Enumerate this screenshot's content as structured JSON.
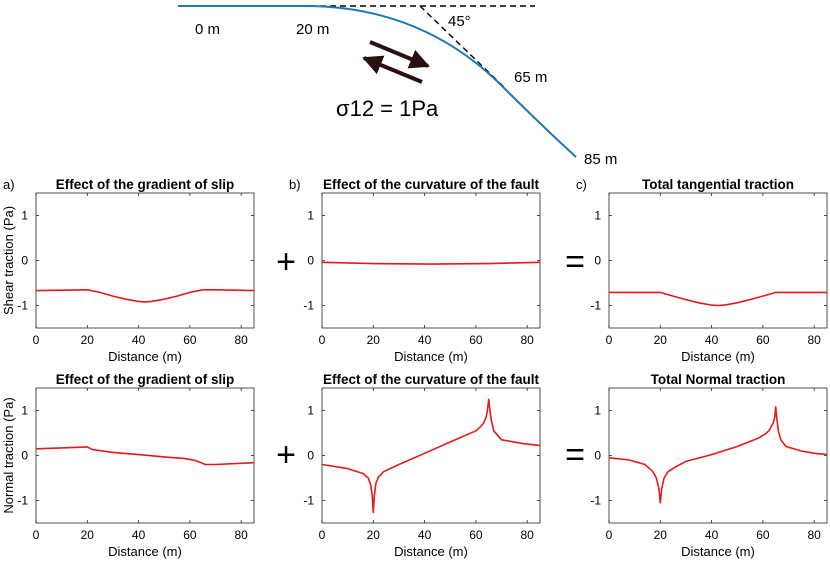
{
  "schematic": {
    "labels": [
      "0 m",
      "20 m",
      "65 m",
      "85 m"
    ],
    "angle_label": "45°",
    "stress_label": "σ12 = 1Pa"
  },
  "operators": {
    "plus": "+",
    "equals": "="
  },
  "chart_data": [
    {
      "type": "line",
      "panel": "a)",
      "title": "Effect of the gradient of slip",
      "xlabel": "Distance (m)",
      "ylabel": "Shear traction (Pa)",
      "xlim": [
        0,
        85
      ],
      "ylim": [
        -1.5,
        1.5
      ],
      "xticks": [
        0,
        20,
        40,
        60,
        80
      ],
      "yticks": [
        -1,
        0,
        1
      ],
      "series": [
        {
          "name": "traction",
          "color": "#e41a1c",
          "x": [
            0,
            20,
            25,
            30,
            35,
            40,
            42.5,
            45,
            50,
            55,
            60,
            65,
            70,
            85
          ],
          "y": [
            -0.67,
            -0.65,
            -0.71,
            -0.79,
            -0.86,
            -0.91,
            -0.92,
            -0.91,
            -0.86,
            -0.79,
            -0.71,
            -0.65,
            -0.65,
            -0.67
          ]
        }
      ]
    },
    {
      "type": "line",
      "panel": "b)",
      "title": "Effect of the curvature of the fault",
      "xlabel": "Distance (m)",
      "ylabel": "",
      "xlim": [
        0,
        85
      ],
      "ylim": [
        -1.5,
        1.5
      ],
      "xticks": [
        0,
        20,
        40,
        60,
        80
      ],
      "yticks": [
        -1,
        0,
        1
      ],
      "series": [
        {
          "name": "traction",
          "color": "#e41a1c",
          "x": [
            0,
            20,
            42.5,
            65,
            85
          ],
          "y": [
            -0.04,
            -0.07,
            -0.08,
            -0.07,
            -0.04
          ]
        }
      ]
    },
    {
      "type": "line",
      "panel": "c)",
      "title": "Total tangential traction",
      "xlabel": "Distance (m)",
      "ylabel": "",
      "xlim": [
        0,
        85
      ],
      "ylim": [
        -1.5,
        1.5
      ],
      "xticks": [
        0,
        20,
        40,
        60,
        80
      ],
      "yticks": [
        -1,
        0,
        1
      ],
      "series": [
        {
          "name": "traction",
          "color": "#e41a1c",
          "x": [
            0,
            20,
            25,
            30,
            35,
            40,
            42.5,
            45,
            50,
            55,
            60,
            65,
            85
          ],
          "y": [
            -0.71,
            -0.71,
            -0.79,
            -0.87,
            -0.94,
            -0.99,
            -1.0,
            -0.99,
            -0.94,
            -0.87,
            -0.79,
            -0.71,
            -0.71
          ]
        }
      ]
    },
    {
      "type": "line",
      "panel": "",
      "title": "Effect of the gradient of slip",
      "xlabel": "Distance (m)",
      "ylabel": "Normal traction (Pa)",
      "xlim": [
        0,
        85
      ],
      "ylim": [
        -1.5,
        1.5
      ],
      "xticks": [
        0,
        20,
        40,
        60,
        80
      ],
      "yticks": [
        -1,
        0,
        1
      ],
      "series": [
        {
          "name": "traction",
          "color": "#e41a1c",
          "x": [
            0,
            10,
            20,
            22,
            30,
            40,
            50,
            58,
            62,
            64,
            66,
            70,
            85
          ],
          "y": [
            0.15,
            0.17,
            0.19,
            0.13,
            0.07,
            0.02,
            -0.03,
            -0.07,
            -0.11,
            -0.15,
            -0.2,
            -0.2,
            -0.16
          ]
        }
      ]
    },
    {
      "type": "line",
      "panel": "",
      "title": "Effect of the curvature of the fault",
      "xlabel": "Distance (m)",
      "ylabel": "",
      "xlim": [
        0,
        85
      ],
      "ylim": [
        -1.5,
        1.5
      ],
      "xticks": [
        0,
        20,
        40,
        60,
        80
      ],
      "yticks": [
        -1,
        0,
        1
      ],
      "series": [
        {
          "name": "traction",
          "color": "#e41a1c",
          "x": [
            0,
            10,
            16,
            18,
            19,
            19.6,
            20,
            20.4,
            21,
            22,
            24,
            30,
            40,
            50,
            60,
            62,
            63,
            64,
            64.5,
            65,
            65.5,
            66,
            67,
            70,
            78,
            85
          ],
          "y": [
            -0.2,
            -0.29,
            -0.4,
            -0.5,
            -0.65,
            -0.9,
            -1.27,
            -0.9,
            -0.62,
            -0.48,
            -0.36,
            -0.2,
            0.05,
            0.3,
            0.55,
            0.65,
            0.72,
            0.85,
            1.0,
            1.25,
            1.0,
            0.78,
            0.55,
            0.35,
            0.27,
            0.22
          ]
        }
      ]
    },
    {
      "type": "line",
      "panel": "",
      "title": "Total Normal traction",
      "xlabel": "Distance (m)",
      "ylabel": "",
      "xlim": [
        0,
        85
      ],
      "ylim": [
        -1.5,
        1.5
      ],
      "xticks": [
        0,
        20,
        40,
        60,
        80
      ],
      "yticks": [
        -1,
        0,
        1
      ],
      "series": [
        {
          "name": "traction",
          "color": "#e41a1c",
          "x": [
            0,
            8,
            14,
            17,
            18.5,
            19.5,
            20,
            20.5,
            21.5,
            23,
            26,
            30,
            40,
            50,
            58,
            61,
            62.5,
            64,
            64.6,
            65,
            65.4,
            66,
            67,
            69,
            75,
            80,
            85
          ],
          "y": [
            -0.05,
            -0.1,
            -0.2,
            -0.35,
            -0.5,
            -0.75,
            -1.05,
            -0.75,
            -0.5,
            -0.36,
            -0.25,
            -0.13,
            0.02,
            0.2,
            0.38,
            0.48,
            0.56,
            0.72,
            0.85,
            1.08,
            0.85,
            0.55,
            0.35,
            0.2,
            0.1,
            0.05,
            0.02
          ]
        }
      ]
    }
  ]
}
